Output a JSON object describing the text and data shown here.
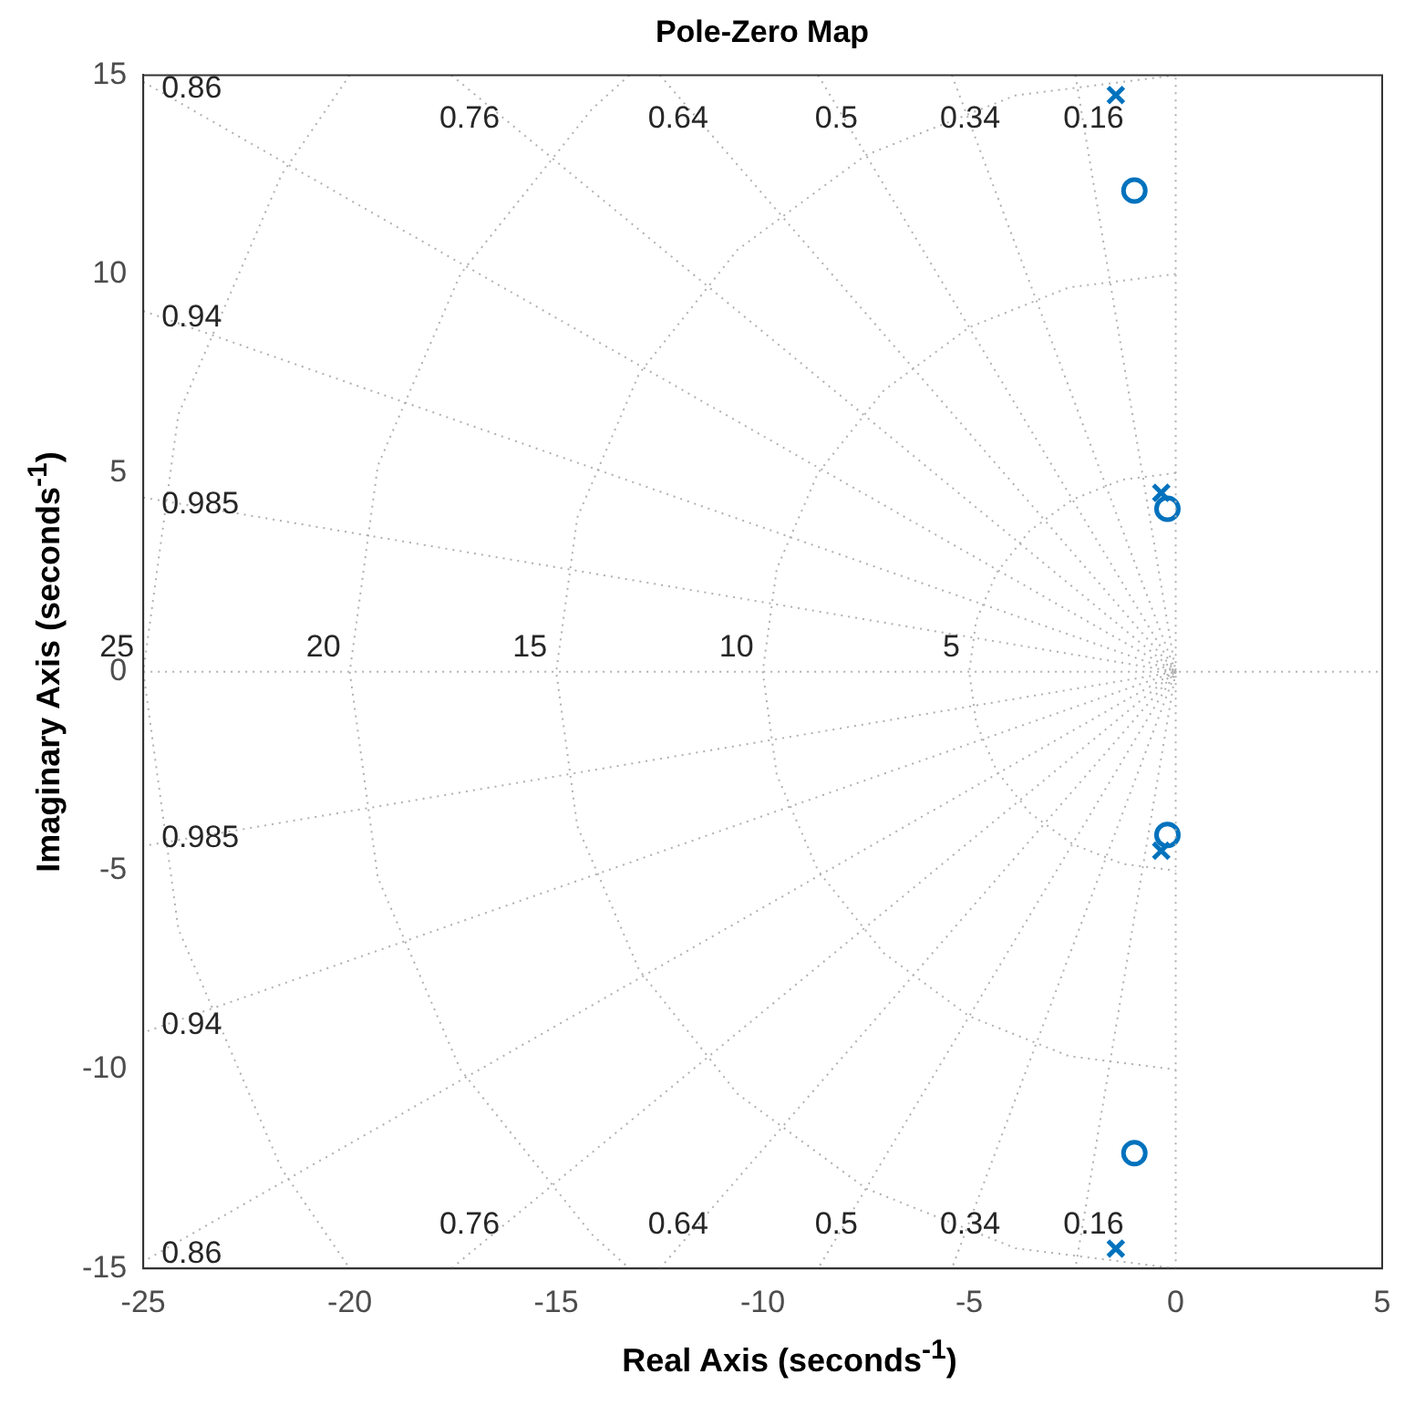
{
  "chart_data": {
    "type": "scatter",
    "title": "Pole-Zero Map",
    "xlabel": "Real Axis (seconds$^{-1}$)",
    "ylabel": "Imaginary Axis (seconds$^{-1}$)",
    "xlim": [
      -25,
      5
    ],
    "xticks": [
      -25,
      -20,
      -15,
      -10,
      -5,
      0,
      5
    ],
    "ylim": [
      -15,
      15
    ],
    "yticks": [
      -15,
      -10,
      -5,
      0,
      5,
      10,
      15
    ],
    "grid": false,
    "legend": false,
    "series": [
      {
        "name": "0.16",
        "type": "line",
        "color": "#b0b0b0",
        "line_style": "dotted",
        "marker": "none",
        "x": [
          -2.43,
          0,
          -2.43
        ],
        "values": [
          15,
          0,
          -15
        ]
      },
      {
        "name": "0.34",
        "type": "line",
        "color": "#b0b0b0",
        "line_style": "dotted",
        "marker": "none",
        "x": [
          -5.42,
          0,
          -5.42
        ],
        "values": [
          15,
          0,
          -15
        ]
      },
      {
        "name": "0.5",
        "type": "line",
        "color": "#b0b0b0",
        "line_style": "dotted",
        "marker": "none",
        "x": [
          -8.66,
          0,
          -8.66
        ],
        "values": [
          15,
          0,
          -15
        ]
      },
      {
        "name": "0.64",
        "type": "line",
        "color": "#b0b0b0",
        "line_style": "dotted",
        "marker": "none",
        "x": [
          -12.49,
          0,
          -12.49
        ],
        "values": [
          15,
          0,
          -15
        ]
      },
      {
        "name": "0.76",
        "type": "line",
        "color": "#b0b0b0",
        "line_style": "dotted",
        "marker": "none",
        "x": [
          -17.54,
          0,
          -17.54
        ],
        "values": [
          15,
          0,
          -15
        ]
      },
      {
        "name": "0.86",
        "type": "line",
        "color": "#b0b0b0",
        "line_style": "dotted",
        "marker": "none",
        "x": [
          -25,
          0,
          -25
        ],
        "values": [
          14.83,
          0,
          -14.83
        ]
      },
      {
        "name": "0.94",
        "type": "line",
        "color": "#b0b0b0",
        "line_style": "dotted",
        "marker": "none",
        "x": [
          -25,
          0,
          -25
        ],
        "values": [
          9.07,
          0,
          -9.07
        ]
      },
      {
        "name": "0.985",
        "type": "line",
        "color": "#b0b0b0",
        "line_style": "dotted",
        "marker": "none",
        "x": [
          -25,
          0,
          -25
        ],
        "values": [
          4.38,
          0,
          -4.38
        ]
      },
      {
        "name": "5",
        "type": "line",
        "color": "#b0b0b0",
        "line_style": "dotted",
        "marker": "none",
        "x": [
          0,
          -1.29,
          -2.5,
          -3.54,
          -4.33,
          -4.83,
          -5,
          -4.83,
          -4.33,
          -3.54,
          -2.5,
          -1.29,
          0
        ],
        "values": [
          5,
          4.83,
          4.33,
          3.54,
          2.5,
          1.29,
          0,
          -1.29,
          -2.5,
          -3.54,
          -4.33,
          -4.83,
          -5
        ]
      },
      {
        "name": "10",
        "type": "line",
        "color": "#b0b0b0",
        "line_style": "dotted",
        "marker": "none",
        "x": [
          0,
          -2.59,
          -5,
          -7.07,
          -8.66,
          -9.66,
          -10,
          -9.66,
          -8.66,
          -7.07,
          -5,
          -2.59,
          0
        ],
        "values": [
          10,
          9.66,
          8.66,
          7.07,
          5,
          2.59,
          0,
          -2.59,
          -5,
          -7.07,
          -8.66,
          -9.66,
          -10
        ]
      },
      {
        "name": "15",
        "type": "line",
        "color": "#b0b0b0",
        "line_style": "dotted",
        "marker": "none",
        "x": [
          0,
          -3.88,
          -7.5,
          -10.61,
          -12.99,
          -14.49,
          -15,
          -14.49,
          -12.99,
          -10.61,
          -7.5,
          -3.88,
          0
        ],
        "values": [
          15,
          14.49,
          12.99,
          10.61,
          7.5,
          3.88,
          0,
          -3.88,
          -7.5,
          -10.61,
          -12.99,
          -14.49,
          -15
        ]
      },
      {
        "name": "20",
        "type": "line",
        "color": "#b0b0b0",
        "line_style": "dotted",
        "marker": "none",
        "x": [
          -13.23,
          -14.14,
          -17.32,
          -19.32,
          -20,
          -19.32,
          -17.32,
          -14.14,
          -13.23
        ],
        "values": [
          15,
          14.14,
          10,
          5.18,
          0,
          -5.18,
          -10,
          -14.14,
          -15
        ]
      },
      {
        "name": "25",
        "type": "line",
        "color": "#b0b0b0",
        "line_style": "dotted",
        "marker": "none",
        "x": [
          -20,
          -21.65,
          -24.15,
          -25,
          -24.15,
          -21.65,
          -20
        ],
        "values": [
          15,
          12.5,
          6.47,
          0,
          -6.47,
          -12.5,
          -15
        ]
      },
      {
        "type": "line",
        "color": "#b0b0b0",
        "line_style": "dotted",
        "marker": "none",
        "x": [
          0,
          0
        ],
        "values": [
          -15,
          15
        ]
      },
      {
        "type": "line",
        "color": "#b0b0b0",
        "line_style": "dotted",
        "marker": "none",
        "x": [
          -25,
          5
        ],
        "values": [
          0,
          0
        ]
      },
      {
        "type": "scatter",
        "color": "#0072bd",
        "marker": "cross",
        "x": [
          -1.45,
          -0.35,
          -0.35,
          -1.45
        ],
        "values": [
          14.5,
          4.5,
          -4.5,
          -14.5
        ]
      },
      {
        "type": "scatter",
        "color": "#0072bd",
        "marker": "circle",
        "x": [
          -1.0,
          -0.2,
          -0.2,
          -1.0
        ],
        "values": [
          12.1,
          4.1,
          -4.1,
          -12.1
        ]
      }
    ]
  }
}
